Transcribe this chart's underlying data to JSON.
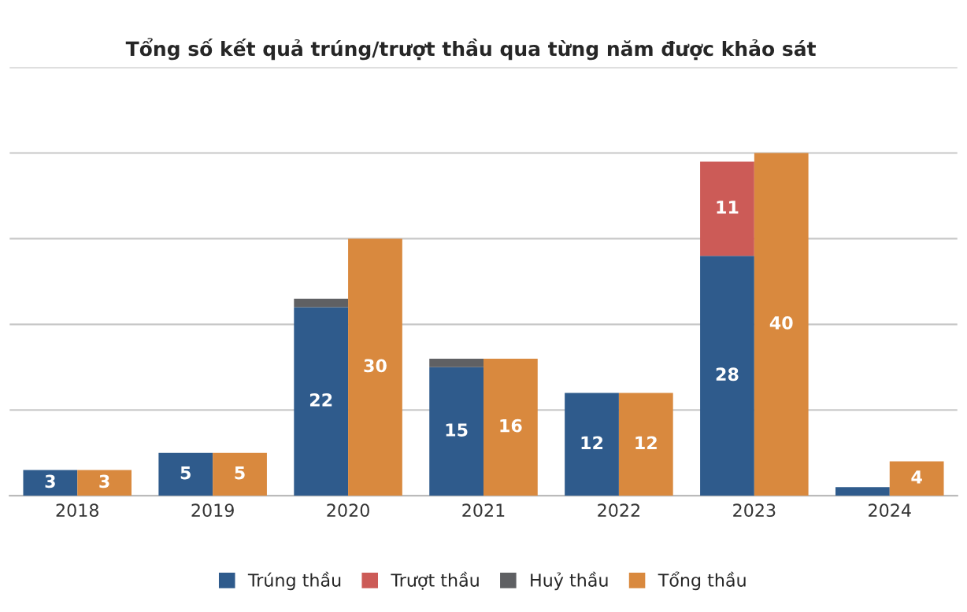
{
  "chart_data": {
    "type": "bar",
    "title": "Tổng số kết quả trúng/trượt thầu qua từng năm được khảo sát",
    "categories": [
      "2018",
      "2019",
      "2020",
      "2021",
      "2022",
      "2023",
      "2024"
    ],
    "stacked": true,
    "series": [
      {
        "name": "Trúng thầu",
        "color": "#2f5b8c",
        "values": [
          3,
          5,
          22,
          15,
          12,
          28,
          1
        ],
        "value_labels": [
          "3",
          "5",
          "22",
          "15",
          "12",
          "28",
          null
        ]
      },
      {
        "name": "Trượt thầu",
        "color": "#cc5b57",
        "values": [
          0,
          0,
          0,
          0,
          0,
          11,
          0
        ],
        "value_labels": [
          null,
          null,
          null,
          null,
          null,
          "11",
          null
        ]
      },
      {
        "name": "Huỷ thầu",
        "color": "#5f6063",
        "values": [
          0,
          0,
          1,
          1,
          0,
          0,
          0
        ],
        "value_labels": [
          null,
          null,
          null,
          null,
          null,
          null,
          null
        ]
      },
      {
        "name": "Tổng thầu",
        "color": "#d9893e",
        "values": [
          3,
          5,
          30,
          16,
          12,
          40,
          4
        ],
        "value_labels": [
          "3",
          "5",
          "30",
          "16",
          "12",
          "40",
          "4"
        ],
        "axis": "y2"
      }
    ],
    "ylim": [
      0,
      50
    ],
    "yticks": [
      {
        "value": 0,
        "label": null
      },
      {
        "value": 10,
        "label": null
      },
      {
        "value": 20,
        "label": null
      },
      {
        "value": 30,
        "label": null
      },
      {
        "value": 40,
        "label": null
      },
      {
        "value": 50,
        "label": null
      }
    ],
    "y2lim": [
      0,
      50
    ],
    "tick_labels": "x",
    "grid": "y",
    "legend": "bottom"
  }
}
